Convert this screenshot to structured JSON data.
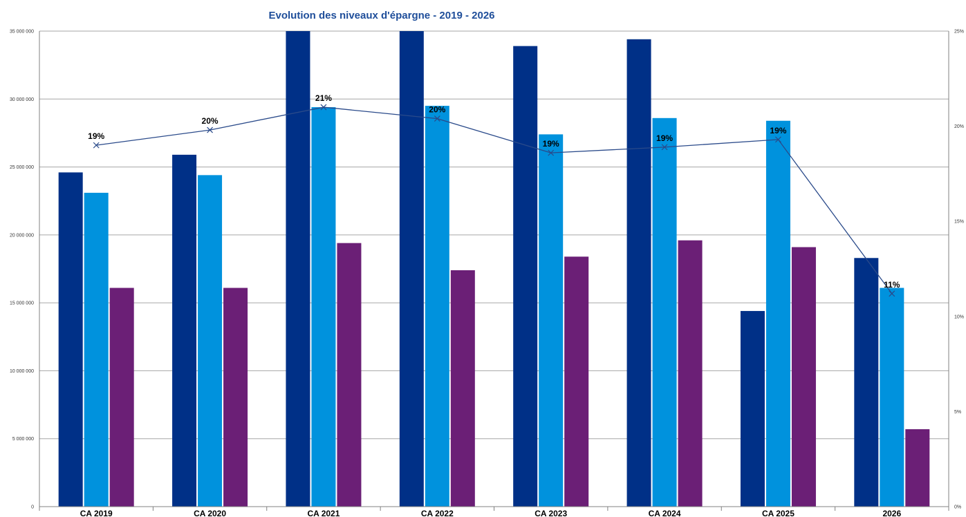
{
  "chart_data": {
    "type": "bar",
    "title": "Evolution des niveaux d'épargne - 2019 - 2026",
    "categories": [
      "CA 2019",
      "CA 2020",
      "CA 2021",
      "CA 2022",
      "CA 2023",
      "CA 2024",
      "CA 2025",
      "2026"
    ],
    "ylim": [
      0,
      35000000
    ],
    "yticks": [
      0,
      5000000,
      10000000,
      15000000,
      20000000,
      25000000,
      30000000,
      35000000
    ],
    "ytick_labels": [
      "0",
      "5 000 000",
      "10 000 000",
      "15 000 000",
      "20 000 000",
      "25 000 000",
      "30 000 000",
      "35 000 000"
    ],
    "y2lim": [
      0,
      25
    ],
    "y2ticks": [
      0,
      5,
      10,
      15,
      20,
      25
    ],
    "y2tick_labels": [
      "0%",
      "5%",
      "10%",
      "15%",
      "20%",
      "25%"
    ],
    "grid": true,
    "series": [
      {
        "type": "bar",
        "color": "#003087",
        "values": [
          24600000,
          25900000,
          35000000,
          35000000,
          33900000,
          34400000,
          14400000,
          18300000
        ]
      },
      {
        "type": "bar",
        "color": "#0092dd",
        "values": [
          23100000,
          24400000,
          29400000,
          29500000,
          27400000,
          28600000,
          28400000,
          16100000
        ]
      },
      {
        "type": "bar",
        "color": "#6b1f76",
        "values": [
          16100000,
          16100000,
          19400000,
          17400000,
          18400000,
          19600000,
          19100000,
          5700000
        ]
      },
      {
        "type": "line",
        "axis": "secondary",
        "color": "#2a4a8a",
        "values": [
          19.0,
          19.8,
          21.0,
          20.4,
          18.6,
          18.9,
          19.3,
          11.2
        ],
        "labels": [
          "19%",
          "20%",
          "21%",
          "20%",
          "19%",
          "19%",
          "19%",
          "11%"
        ]
      }
    ]
  },
  "colors": {
    "title": "#1f4e9a",
    "grid": "#a6a6a6",
    "axis": "#808080"
  }
}
